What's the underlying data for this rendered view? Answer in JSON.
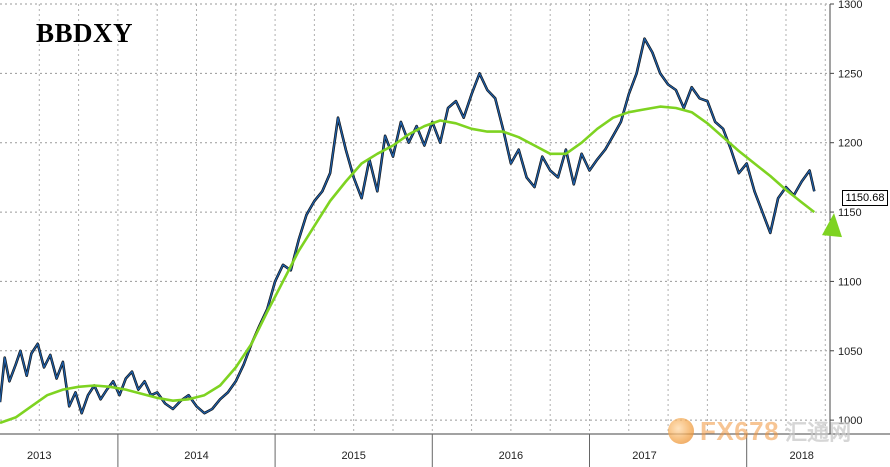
{
  "chart_data": {
    "type": "line",
    "title": "BBDXY",
    "xlabel": "",
    "ylabel": "",
    "x_range": [
      2013.0,
      2018.28
    ],
    "ylim": [
      990,
      1300
    ],
    "yticks": [
      1000,
      1050,
      1100,
      1150,
      1200,
      1250,
      1300
    ],
    "year_labels": [
      "2013",
      "2014",
      "2015",
      "2016",
      "2017",
      "2018"
    ],
    "year_label_positions": [
      2013.25,
      2014.25,
      2015.25,
      2016.25,
      2017.1,
      2018.1
    ],
    "year_boundaries": [
      2013.75,
      2014.75,
      2015.75,
      2016.75,
      2017.75
    ],
    "grid": true,
    "last_value_label": "1150.68",
    "series": [
      {
        "color": "#1f5fa8",
        "style": "price",
        "x": [
          2013.0,
          2013.03,
          2013.06,
          2013.1,
          2013.13,
          2013.17,
          2013.2,
          2013.24,
          2013.28,
          2013.32,
          2013.36,
          2013.4,
          2013.44,
          2013.48,
          2013.52,
          2013.56,
          2013.6,
          2013.64,
          2013.68,
          2013.72,
          2013.76,
          2013.8,
          2013.84,
          2013.88,
          2013.92,
          2013.96,
          2014.0,
          2014.05,
          2014.1,
          2014.15,
          2014.2,
          2014.25,
          2014.3,
          2014.35,
          2014.4,
          2014.45,
          2014.5,
          2014.55,
          2014.6,
          2014.65,
          2014.7,
          2014.75,
          2014.8,
          2014.85,
          2014.9,
          2014.95,
          2015.0,
          2015.05,
          2015.1,
          2015.15,
          2015.2,
          2015.25,
          2015.3,
          2015.35,
          2015.4,
          2015.45,
          2015.5,
          2015.55,
          2015.6,
          2015.65,
          2015.7,
          2015.75,
          2015.8,
          2015.85,
          2015.9,
          2015.95,
          2016.0,
          2016.05,
          2016.1,
          2016.15,
          2016.2,
          2016.25,
          2016.3,
          2016.35,
          2016.4,
          2016.45,
          2016.5,
          2016.55,
          2016.6,
          2016.65,
          2016.7,
          2016.75,
          2016.8,
          2016.85,
          2016.9,
          2016.95,
          2017.0,
          2017.05,
          2017.1,
          2017.15,
          2017.2,
          2017.25,
          2017.3,
          2017.35,
          2017.4,
          2017.45,
          2017.5,
          2017.55,
          2017.6,
          2017.65,
          2017.7,
          2017.75,
          2017.8,
          2017.85,
          2017.9,
          2017.95,
          2018.0,
          2018.05,
          2018.1,
          2018.15,
          2018.18
        ],
        "values": [
          1013,
          1045,
          1028,
          1040,
          1050,
          1032,
          1048,
          1055,
          1038,
          1047,
          1030,
          1042,
          1010,
          1020,
          1005,
          1018,
          1025,
          1015,
          1022,
          1028,
          1018,
          1030,
          1035,
          1022,
          1028,
          1018,
          1020,
          1012,
          1008,
          1014,
          1018,
          1010,
          1005,
          1008,
          1015,
          1020,
          1028,
          1040,
          1055,
          1068,
          1080,
          1100,
          1112,
          1108,
          1130,
          1148,
          1158,
          1165,
          1178,
          1218,
          1195,
          1175,
          1160,
          1188,
          1165,
          1205,
          1190,
          1215,
          1200,
          1212,
          1198,
          1215,
          1200,
          1225,
          1230,
          1218,
          1235,
          1250,
          1238,
          1232,
          1210,
          1185,
          1195,
          1175,
          1168,
          1190,
          1180,
          1175,
          1195,
          1170,
          1192,
          1180,
          1188,
          1195,
          1205,
          1215,
          1235,
          1250,
          1275,
          1265,
          1250,
          1242,
          1238,
          1225,
          1240,
          1232,
          1230,
          1215,
          1210,
          1195,
          1178,
          1185,
          1165,
          1150,
          1135,
          1160,
          1168,
          1162,
          1172,
          1180,
          1165
        ]
      },
      {
        "color": "#7ed321",
        "style": "moving-average",
        "x": [
          2013.0,
          2013.1,
          2013.2,
          2013.3,
          2013.4,
          2013.5,
          2013.6,
          2013.7,
          2013.8,
          2013.9,
          2014.0,
          2014.1,
          2014.2,
          2014.3,
          2014.4,
          2014.5,
          2014.6,
          2014.7,
          2014.8,
          2014.9,
          2015.0,
          2015.1,
          2015.2,
          2015.3,
          2015.4,
          2015.5,
          2015.6,
          2015.7,
          2015.8,
          2015.9,
          2016.0,
          2016.1,
          2016.2,
          2016.3,
          2016.4,
          2016.5,
          2016.6,
          2016.7,
          2016.8,
          2016.9,
          2017.0,
          2017.1,
          2017.2,
          2017.3,
          2017.4,
          2017.5,
          2017.6,
          2017.7,
          2017.8,
          2017.9,
          2018.0,
          2018.1,
          2018.18
        ],
        "values": [
          998,
          1002,
          1010,
          1018,
          1022,
          1024,
          1025,
          1024,
          1022,
          1019,
          1016,
          1014,
          1015,
          1018,
          1025,
          1038,
          1055,
          1078,
          1100,
          1122,
          1140,
          1158,
          1172,
          1185,
          1192,
          1198,
          1206,
          1212,
          1216,
          1214,
          1210,
          1208,
          1208,
          1204,
          1198,
          1192,
          1192,
          1200,
          1210,
          1218,
          1222,
          1224,
          1226,
          1225,
          1222,
          1214,
          1204,
          1194,
          1185,
          1176,
          1166,
          1157,
          1150
        ]
      }
    ]
  },
  "watermark": {
    "latin": "FX678",
    "cn": "汇通网"
  }
}
